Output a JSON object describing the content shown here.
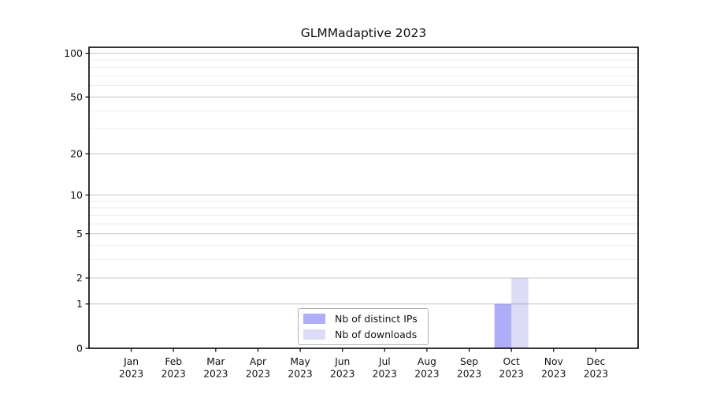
{
  "chart_data": {
    "type": "bar",
    "title": "GLMMadaptive 2023",
    "categories": [
      "Jan",
      "Feb",
      "Mar",
      "Apr",
      "May",
      "Jun",
      "Jul",
      "Aug",
      "Sep",
      "Oct",
      "Nov",
      "Dec"
    ],
    "category_year": "2023",
    "series": [
      {
        "name": "Nb of distinct IPs",
        "color": "rgba(20,20,235,0.35)",
        "values": [
          0,
          0,
          0,
          0,
          0,
          0,
          0,
          0,
          0,
          1,
          0,
          0
        ]
      },
      {
        "name": "Nb of downloads",
        "color": "rgba(40,40,215,0.16)",
        "values": [
          0,
          0,
          0,
          0,
          0,
          0,
          0,
          0,
          0,
          2,
          0,
          0
        ]
      }
    ],
    "xlabel": "",
    "ylabel": "",
    "yscale": "log1p",
    "ylim": [
      0,
      110
    ],
    "yticks": [
      0,
      1,
      2,
      5,
      10,
      20,
      50,
      100
    ],
    "minor_yticks": [
      3,
      4,
      6,
      7,
      8,
      9,
      30,
      40,
      60,
      70,
      80,
      90
    ],
    "grid": "horizontal-major-and-minor",
    "legend_position": "inside-bottom-center"
  },
  "colors": {
    "background": "#ffffff",
    "axis": "#000000",
    "text": "#111111",
    "major_grid": "#c6c6c6",
    "minor_grid": "#eeeeee",
    "legend_border": "#b3b3b3",
    "bar_distinct_ips": "rgba(20,20,235,0.35)",
    "bar_downloads": "rgba(40,40,215,0.16)"
  }
}
